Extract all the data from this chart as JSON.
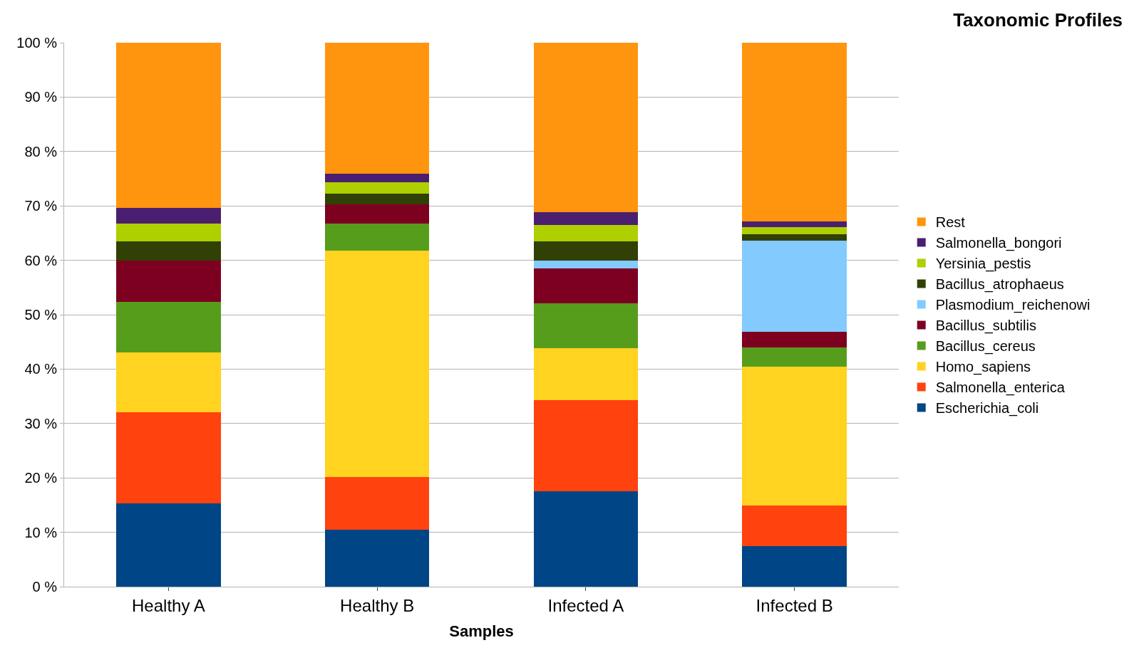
{
  "chart_data": {
    "type": "bar",
    "title": "Taxonomic Profiles",
    "xlabel": "Samples",
    "categories": [
      "Healthy A",
      "Healthy B",
      "Infected A",
      "Infected B"
    ],
    "stacked": true,
    "grid": "y",
    "legend": "right",
    "ylim": [
      0,
      100
    ],
    "yticks": [
      {
        "value": 0,
        "label": "0 %"
      },
      {
        "value": 10,
        "label": "10 %"
      },
      {
        "value": 20,
        "label": "20 %"
      },
      {
        "value": 30,
        "label": "30 %"
      },
      {
        "value": 40,
        "label": "40 %"
      },
      {
        "value": 50,
        "label": "50 %"
      },
      {
        "value": 60,
        "label": "60 %"
      },
      {
        "value": 70,
        "label": "70 %"
      },
      {
        "value": 80,
        "label": "80 %"
      },
      {
        "value": 90,
        "label": "90 %"
      },
      {
        "value": 100,
        "label": "100 %"
      }
    ],
    "series": [
      {
        "name": "Escherichia_coli",
        "color": "#004586",
        "values": [
          15.3,
          10.5,
          17.5,
          7.5
        ]
      },
      {
        "name": "Salmonella_enterica",
        "color": "#ff420e",
        "values": [
          16.8,
          9.7,
          16.8,
          7.4
        ]
      },
      {
        "name": "Homo_sapiens",
        "color": "#ffd320",
        "values": [
          11.0,
          41.6,
          9.5,
          25.6
        ]
      },
      {
        "name": "Bacillus_cereus",
        "color": "#579d1c",
        "values": [
          9.2,
          5.0,
          8.3,
          3.5
        ]
      },
      {
        "name": "Bacillus_subtilis",
        "color": "#7e0021",
        "values": [
          7.7,
          3.5,
          6.4,
          2.8
        ]
      },
      {
        "name": "Plasmodium_reichenowi",
        "color": "#83caff",
        "values": [
          0,
          0,
          1.5,
          16.8
        ]
      },
      {
        "name": "Bacillus_atrophaeus",
        "color": "#314004",
        "values": [
          3.5,
          2.0,
          3.5,
          1.2
        ]
      },
      {
        "name": "Yersinia_pestis",
        "color": "#aecf00",
        "values": [
          3.3,
          2.1,
          3.0,
          1.3
        ]
      },
      {
        "name": "Salmonella_bongori",
        "color": "#4b1f6f",
        "values": [
          2.8,
          1.5,
          2.4,
          1.0
        ]
      },
      {
        "name": "Rest",
        "color": "#ff950e",
        "values": [
          30.4,
          24.1,
          31.1,
          32.9
        ]
      }
    ]
  }
}
